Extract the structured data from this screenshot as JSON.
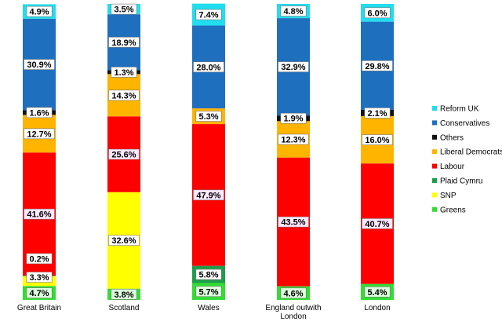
{
  "chart_data": {
    "type": "stacked-bar",
    "categories": [
      "Great Britain",
      "Scotland",
      "Wales",
      "England outwith London",
      "London"
    ],
    "stack_order": [
      "Greens",
      "SNP",
      "Plaid Cymru",
      "Labour",
      "Liberal Democrats",
      "Others",
      "Conservatives",
      "Reform UK"
    ],
    "series": [
      {
        "name": "Greens",
        "color": "#33dd33",
        "values": [
          4.7,
          3.8,
          5.7,
          4.6,
          5.4
        ],
        "labels": [
          "4.7%",
          "3.8%",
          "5.7%",
          "4.6%",
          "5.4%"
        ]
      },
      {
        "name": "SNP",
        "color": "#ffff00",
        "values": [
          3.3,
          32.6,
          0,
          0,
          0
        ],
        "labels": [
          "3.3%",
          "32.6%",
          "",
          "",
          ""
        ]
      },
      {
        "name": "Plaid Cymru",
        "color": "#1e9e4a",
        "values": [
          0.2,
          0,
          5.8,
          0,
          0
        ],
        "labels": [
          "0.2%",
          "",
          "5.8%",
          "",
          ""
        ]
      },
      {
        "name": "Labour",
        "color": "#ff0000",
        "values": [
          41.6,
          25.6,
          47.9,
          43.5,
          40.7
        ],
        "labels": [
          "41.6%",
          "25.6%",
          "47.9%",
          "43.5%",
          "40.7%"
        ]
      },
      {
        "name": "Liberal Democrats",
        "color": "#ffb400",
        "values": [
          12.7,
          14.3,
          5.3,
          12.3,
          16.0
        ],
        "labels": [
          "12.7%",
          "14.3%",
          "5.3%",
          "12.3%",
          "16.0%"
        ]
      },
      {
        "name": "Others",
        "color": "#111111",
        "values": [
          1.6,
          1.3,
          0,
          1.9,
          2.1
        ],
        "labels": [
          "1.6%",
          "1.3%",
          "",
          "1.9%",
          "2.1%"
        ]
      },
      {
        "name": "Conservatives",
        "color": "#1f6fbf",
        "values": [
          30.9,
          18.9,
          28.0,
          32.9,
          29.8
        ],
        "labels": [
          "30.9%",
          "18.9%",
          "28.0%",
          "32.9%",
          "29.8%"
        ]
      },
      {
        "name": "Reform UK",
        "color": "#22ddee",
        "values": [
          4.9,
          3.5,
          7.4,
          4.8,
          6.0
        ],
        "labels": [
          "4.9%",
          "3.5%",
          "7.4%",
          "4.8%",
          "6.0%"
        ]
      }
    ],
    "legend": {
      "position": "right",
      "entries": [
        "Reform UK",
        "Conservatives",
        "Others",
        "Liberal Democrats",
        "Labour",
        "Plaid Cymru",
        "SNP",
        "Greens"
      ]
    },
    "category_label_lines": [
      [
        "Great Britain"
      ],
      [
        "Scotland"
      ],
      [
        "Wales"
      ],
      [
        "England outwith",
        "London"
      ],
      [
        "London"
      ]
    ],
    "ylim": [
      0,
      100
    ],
    "grid": false
  }
}
